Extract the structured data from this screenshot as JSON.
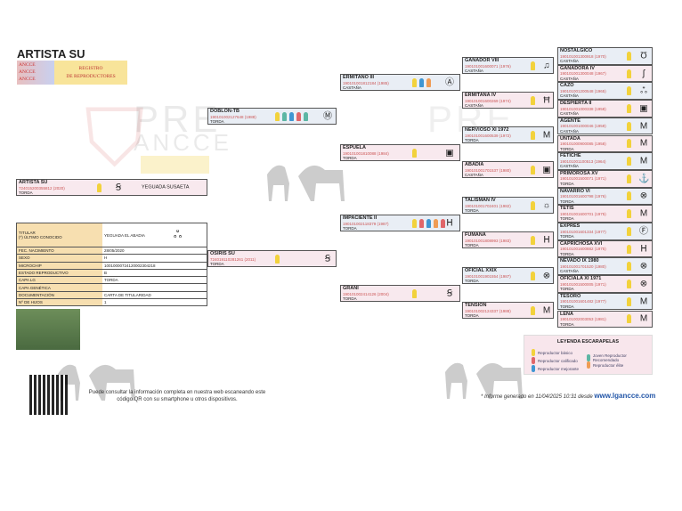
{
  "title": "ARTISTA SU",
  "logo": {
    "left": "ANCCE ANCCE ANCCE",
    "line1": "REGISTRO",
    "line2": "DE REPRODUCTORES"
  },
  "watermark": {
    "l1": "PRE",
    "l2": "ANCCE",
    "l3": "LG"
  },
  "colors": {
    "yellow": "#f2d23c",
    "red": "#e0666a",
    "blue": "#3f96d2",
    "orange": "#ef9c55",
    "teal": "#5db6a4",
    "male_bg": "#e9eef5",
    "female_bg": "#f8e9ee"
  },
  "subject": {
    "name": "ARTISTA SU",
    "code": "724015200355812 (2020)",
    "coat": "TORDA",
    "sex": "f",
    "rosettes": [
      "yellow"
    ],
    "brand": "Ꞩ",
    "breeder": "YEGUADA SUSAETA"
  },
  "info": [
    {
      "k": "TITULAR\n(*) ÚLTIMO CONOCIDO",
      "v": "YEGUADA EL ABADIA"
    },
    {
      "k": "FEC. NACIMIENTO",
      "v": "28/05/2020"
    },
    {
      "k": "SEXO",
      "v": "H"
    },
    {
      "k": "MICROCHIP",
      "v": "100100007241200023042​18"
    },
    {
      "k": "ESTADO REPRODUCTIVO",
      "v": "B"
    },
    {
      "k": "CAPA LG",
      "v": "TORDA"
    },
    {
      "k": "CAPA GENÉTICA",
      "v": ""
    },
    {
      "k": "DOCUMENTACIÓN",
      "v": "CARTA DE TITULARIDAD"
    },
    {
      "k": "Nº DE HIJOS",
      "v": "1"
    }
  ],
  "gen1": [
    {
      "name": "DOBLON-TB",
      "code": "190101002127648 (1988)",
      "coat": "TORDA",
      "sex": "m",
      "rosettes": [
        "yellow",
        "teal",
        "blue",
        "red",
        "teal"
      ],
      "brand": "Ⓜ"
    },
    {
      "name": "OSIRIS SU",
      "code": "724019110281261 (2011)",
      "coat": "TORDA",
      "sex": "f",
      "rosettes": [
        "yellow"
      ],
      "brand": "Ꞩ"
    }
  ],
  "gen2": [
    {
      "name": "ERMITAÑO III",
      "code": "190101001812184 (1985)",
      "coat": "CASTAÑA",
      "sex": "m",
      "rosettes": [
        "yellow",
        "blue",
        "orange"
      ],
      "brand": "Ⓐ"
    },
    {
      "name": "ESPUELA",
      "code": "190101001810088 (1984)",
      "coat": "TORDA",
      "sex": "f",
      "rosettes": [
        "yellow"
      ],
      "brand": "▣"
    },
    {
      "name": "IMPACIENTE II",
      "code": "190101002118379 (1987)",
      "coat": "TORDA",
      "sex": "m",
      "rosettes": [
        "yellow",
        "red",
        "blue",
        "orange",
        "red"
      ],
      "brand": "ᕼ"
    },
    {
      "name": "GRANI",
      "code": "190101002414126 (2004)",
      "coat": "TORDA",
      "sex": "f",
      "rosettes": [
        "yellow"
      ],
      "brand": "Ꞩ"
    }
  ],
  "gen3": [
    {
      "name": "GANADOR VIII",
      "code": "190101001600071 (1976)",
      "coat": "CASTAÑA",
      "sex": "m",
      "rosettes": [
        "yellow"
      ],
      "brand": "♫"
    },
    {
      "name": "ERMITANA IV",
      "code": "190101001600269 (1974)",
      "coat": "CASTAÑA",
      "sex": "f",
      "rosettes": [
        "yellow"
      ],
      "brand": "Ħ"
    },
    {
      "name": "NERVIOSO XI 1972",
      "code": "190101001600539 (1972)",
      "coat": "TORDA",
      "sex": "m",
      "rosettes": [
        "yellow"
      ],
      "brand": "M"
    },
    {
      "name": "ABADIA",
      "code": "190101001701537 (1980)",
      "coat": "CASTAÑA",
      "sex": "f",
      "rosettes": [
        "yellow"
      ],
      "brand": "▣"
    },
    {
      "name": "TALISMAN IV",
      "code": "190101001702401 (1982)",
      "coat": "TORDA",
      "sex": "m",
      "rosettes": [
        "yellow"
      ],
      "brand": "☼"
    },
    {
      "name": "FUMANA",
      "code": "190101001808993 (1983)",
      "coat": "TORDA",
      "sex": "f",
      "rosettes": [
        "yellow"
      ],
      "brand": "ᕼ"
    },
    {
      "name": "OFICIAL XXIX",
      "code": "190101001901554 (1987)",
      "coat": "TORDA",
      "sex": "m",
      "rosettes": [
        "yellow"
      ],
      "brand": "⊗"
    },
    {
      "name": "TENSION",
      "code": "190101002124337 (1988)",
      "coat": "TORDA",
      "sex": "f",
      "rosettes": [
        "yellow"
      ],
      "brand": "M"
    }
  ],
  "gen4": [
    {
      "name": "NOSTALGICO",
      "code": "190101001300918 (1970)",
      "coat": "CASTAÑA",
      "sex": "m",
      "brand": "Ʊ"
    },
    {
      "name": "GANADORA IV",
      "code": "190101001300048 (1967)",
      "coat": "CASTAÑA",
      "sex": "f",
      "brand": "ʃ"
    },
    {
      "name": "CAZO",
      "code": "190101001200548 (1965)",
      "coat": "CASTAÑA",
      "sex": "m",
      "brand": "ஃ"
    },
    {
      "name": "DESPIERTA II",
      "code": "190101001000338 (1958)",
      "coat": "CASTAÑA",
      "sex": "f",
      "brand": "▣"
    },
    {
      "name": "AGENTE",
      "code": "190101001000046 (1959)",
      "coat": "CASTAÑA",
      "sex": "m",
      "brand": "M"
    },
    {
      "name": "UNTADA",
      "code": "190101000900085 (1958)",
      "coat": "TORDA",
      "sex": "f",
      "brand": "M"
    },
    {
      "name": "FETICHE",
      "code": "190101001100513 (1964)",
      "coat": "CASTAÑA",
      "sex": "m",
      "brand": "M"
    },
    {
      "name": "PRIMOROSA XV",
      "code": "190101001500071 (1971)",
      "coat": "TORDA",
      "sex": "f",
      "brand": "⚓"
    },
    {
      "name": "NAVARRO VI",
      "code": "190101001600798 (1976)",
      "coat": "TORDA",
      "sex": "m",
      "brand": "⊗"
    },
    {
      "name": "TETIS",
      "code": "190101001600701 (1975)",
      "coat": "TORDA",
      "sex": "f",
      "brand": "M"
    },
    {
      "name": "EXPRES",
      "code": "190101001601334 (1977)",
      "coat": "TORDA",
      "sex": "m",
      "brand": "Ⓕ"
    },
    {
      "name": "CAPRICHOSA XVI",
      "code": "190101001600882 (1975)",
      "coat": "TORDA",
      "sex": "f",
      "brand": "ᕼ"
    },
    {
      "name": "NEVADO IX 1980",
      "code": "190101001701520 (1980)",
      "coat": "CASTAÑA",
      "sex": "m",
      "brand": "⊗"
    },
    {
      "name": "OFICIALA XI 1971",
      "code": "190101001500005 (1971)",
      "coat": "TORDA",
      "sex": "f",
      "brand": "⊗"
    },
    {
      "name": "TESORO",
      "code": "190101001601482 (1977)",
      "coat": "TORDA",
      "sex": "m",
      "brand": "M"
    },
    {
      "name": "LEÑA",
      "code": "190101002003053 (1981)",
      "coat": "TORDA",
      "sex": "f",
      "brand": "M"
    }
  ],
  "legend": {
    "title": "LEYENDA ESCARAPELAS",
    "items": [
      {
        "label": "Reproductor básico",
        "color": "#f2d23c"
      },
      {
        "label": "Reproductor calificado",
        "color": "#e0666a"
      },
      {
        "label": "Reproductor mejorante",
        "color": "#3f96d2"
      },
      {
        "label": "Joven Reproductor Recomendado",
        "color": "#5db6a4"
      },
      {
        "label": "Reproductor élite",
        "color": "#ef9c55"
      }
    ]
  },
  "footer": {
    "qr_text_1": "Puede consultar la información completa en nuestra web escaneando este",
    "qr_text_2": "código QR con su smartphone u otros dispositivos.",
    "report": "* Informe generado en 11/04/2025 10:31 desde",
    "site": "www.lgancce.com"
  }
}
